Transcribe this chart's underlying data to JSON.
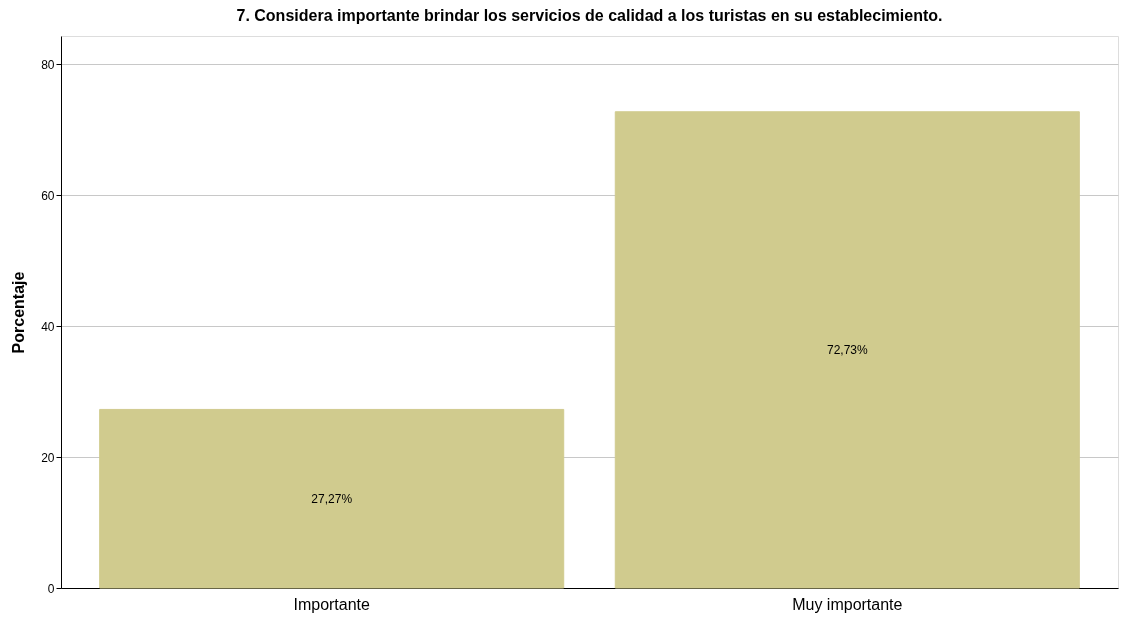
{
  "chart_data": {
    "type": "bar",
    "title": "7. Considera importante brindar los servicios de calidad a los turistas en su establecimiento.",
    "ylabel": "Porcentaje",
    "categories": [
      "Importante",
      "Muy importante"
    ],
    "values": [
      27.27,
      72.73
    ],
    "value_labels": [
      "27,27%",
      "72,73%"
    ],
    "color": "#d0cb8e",
    "ylim": [
      0,
      84.3
    ],
    "yticks": [
      0,
      20,
      40,
      60,
      80
    ],
    "grid": "y"
  }
}
